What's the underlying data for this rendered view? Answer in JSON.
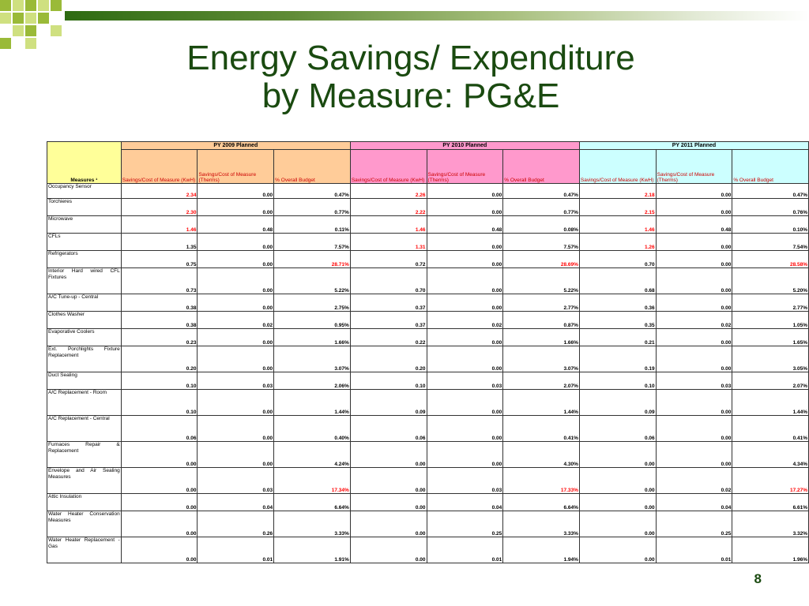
{
  "title": {
    "line1": "Energy Savings/ Expenditure",
    "line2": "by Measure: PG&E"
  },
  "page_number": "8",
  "table": {
    "measures_header": "Measures ¹",
    "groups": [
      "PY 2009 Planned",
      "PY 2010 Planned",
      "PY 2011 Planned"
    ],
    "sub_headers": [
      "Savings/Cost of Measure (KwH)",
      "Savings/Cost of Measure (Therms)",
      "% Overall Budget"
    ],
    "rows": [
      {
        "name": "Occupancy Sensor",
        "h": 19,
        "v": [
          [
            "2.34",
            "r"
          ],
          [
            "0.00",
            ""
          ],
          [
            "0.47%",
            ""
          ],
          [
            "2.26",
            "r"
          ],
          [
            "0.00",
            ""
          ],
          [
            "0.47%",
            ""
          ],
          [
            "2.18",
            "r"
          ],
          [
            "0.00",
            ""
          ],
          [
            "0.47%",
            ""
          ]
        ]
      },
      {
        "name": "Torchieres",
        "h": 22,
        "v": [
          [
            "2.30",
            "r"
          ],
          [
            "0.00",
            ""
          ],
          [
            "0.77%",
            ""
          ],
          [
            "2.22",
            "r"
          ],
          [
            "0.00",
            ""
          ],
          [
            "0.77%",
            ""
          ],
          [
            "2.15",
            "r"
          ],
          [
            "0.00",
            ""
          ],
          [
            "0.76%",
            ""
          ]
        ]
      },
      {
        "name": "Microwave",
        "h": 22,
        "v": [
          [
            "1.46",
            "r"
          ],
          [
            "0.48",
            ""
          ],
          [
            "0.11%",
            ""
          ],
          [
            "1.46",
            "r"
          ],
          [
            "0.48",
            ""
          ],
          [
            "0.08%",
            ""
          ],
          [
            "1.46",
            "r"
          ],
          [
            "0.48",
            ""
          ],
          [
            "0.10%",
            ""
          ]
        ]
      },
      {
        "name": "CFLs",
        "h": 22,
        "v": [
          [
            "1.35",
            ""
          ],
          [
            "0.00",
            ""
          ],
          [
            "7.57%",
            ""
          ],
          [
            "1.31",
            "r"
          ],
          [
            "0.00",
            ""
          ],
          [
            "7.57%",
            ""
          ],
          [
            "1.26",
            "r"
          ],
          [
            "0.00",
            ""
          ],
          [
            "7.54%",
            ""
          ]
        ]
      },
      {
        "name": "Refrigerators",
        "h": 22,
        "v": [
          [
            "0.75",
            ""
          ],
          [
            "0.00",
            ""
          ],
          [
            "28.71%",
            "r"
          ],
          [
            "0.72",
            ""
          ],
          [
            "0.00",
            ""
          ],
          [
            "28.69%",
            "r"
          ],
          [
            "0.70",
            ""
          ],
          [
            "0.00",
            ""
          ],
          [
            "28.58%",
            "r"
          ]
        ]
      },
      {
        "name": "Interior Hard wired CFL Fixtures",
        "h": 33,
        "v": [
          [
            "0.73",
            ""
          ],
          [
            "0.00",
            ""
          ],
          [
            "5.22%",
            ""
          ],
          [
            "0.70",
            ""
          ],
          [
            "0.00",
            ""
          ],
          [
            "5.22%",
            ""
          ],
          [
            "0.68",
            ""
          ],
          [
            "0.00",
            ""
          ],
          [
            "5.20%",
            ""
          ]
        ]
      },
      {
        "name": "A/C Tune-up - Central",
        "h": 22,
        "v": [
          [
            "0.38",
            ""
          ],
          [
            "0.00",
            ""
          ],
          [
            "2.75%",
            ""
          ],
          [
            "0.37",
            ""
          ],
          [
            "0.00",
            ""
          ],
          [
            "2.77%",
            ""
          ],
          [
            "0.36",
            ""
          ],
          [
            "0.00",
            ""
          ],
          [
            "2.77%",
            ""
          ]
        ]
      },
      {
        "name": "Clothes Washer",
        "h": 22,
        "v": [
          [
            "0.38",
            ""
          ],
          [
            "0.02",
            ""
          ],
          [
            "0.95%",
            ""
          ],
          [
            "0.37",
            ""
          ],
          [
            "0.02",
            ""
          ],
          [
            "0.87%",
            ""
          ],
          [
            "0.35",
            ""
          ],
          [
            "0.02",
            ""
          ],
          [
            "1.05%",
            ""
          ]
        ]
      },
      {
        "name": "Evaporative Coolers",
        "h": 22,
        "v": [
          [
            "0.23",
            ""
          ],
          [
            "0.00",
            ""
          ],
          [
            "1.66%",
            ""
          ],
          [
            "0.22",
            ""
          ],
          [
            "0.00",
            ""
          ],
          [
            "1.66%",
            ""
          ],
          [
            "0.21",
            ""
          ],
          [
            "0.00",
            ""
          ],
          [
            "1.65%",
            ""
          ]
        ]
      },
      {
        "name": "Ext. Porchlights Fixture Replacement",
        "h": 33,
        "v": [
          [
            "0.20",
            ""
          ],
          [
            "0.00",
            ""
          ],
          [
            "3.07%",
            ""
          ],
          [
            "0.20",
            ""
          ],
          [
            "0.00",
            ""
          ],
          [
            "3.07%",
            ""
          ],
          [
            "0.19",
            ""
          ],
          [
            "0.00",
            ""
          ],
          [
            "3.05%",
            ""
          ]
        ]
      },
      {
        "name": "Duct Sealing",
        "h": 22,
        "v": [
          [
            "0.10",
            ""
          ],
          [
            "0.03",
            ""
          ],
          [
            "2.06%",
            ""
          ],
          [
            "0.10",
            ""
          ],
          [
            "0.03",
            ""
          ],
          [
            "2.07%",
            ""
          ],
          [
            "0.10",
            ""
          ],
          [
            "0.03",
            ""
          ],
          [
            "2.07%",
            ""
          ]
        ]
      },
      {
        "name": "A/C Replacement - Room",
        "h": 33,
        "v": [
          [
            "0.10",
            ""
          ],
          [
            "0.00",
            ""
          ],
          [
            "1.44%",
            ""
          ],
          [
            "0.09",
            ""
          ],
          [
            "0.00",
            ""
          ],
          [
            "1.44%",
            ""
          ],
          [
            "0.09",
            ""
          ],
          [
            "0.00",
            ""
          ],
          [
            "1.44%",
            ""
          ]
        ]
      },
      {
        "name": "A/C Replacement - Central",
        "h": 33,
        "v": [
          [
            "0.06",
            ""
          ],
          [
            "0.00",
            ""
          ],
          [
            "0.40%",
            ""
          ],
          [
            "0.06",
            ""
          ],
          [
            "0.00",
            ""
          ],
          [
            "0.41%",
            ""
          ],
          [
            "0.06",
            ""
          ],
          [
            "0.00",
            ""
          ],
          [
            "0.41%",
            ""
          ]
        ]
      },
      {
        "name": "Furnaces Repair & Replacement",
        "h": 33,
        "v": [
          [
            "0.00",
            ""
          ],
          [
            "0.00",
            ""
          ],
          [
            "4.24%",
            ""
          ],
          [
            "0.00",
            ""
          ],
          [
            "0.00",
            ""
          ],
          [
            "4.30%",
            ""
          ],
          [
            "0.00",
            ""
          ],
          [
            "0.00",
            ""
          ],
          [
            "4.34%",
            ""
          ]
        ]
      },
      {
        "name": "Envelope and Air Sealing Measures",
        "h": 33,
        "v": [
          [
            "0.00",
            ""
          ],
          [
            "0.03",
            ""
          ],
          [
            "17.34%",
            "r"
          ],
          [
            "0.00",
            ""
          ],
          [
            "0.03",
            ""
          ],
          [
            "17.33%",
            "r"
          ],
          [
            "0.00",
            ""
          ],
          [
            "0.02",
            ""
          ],
          [
            "17.27%",
            "r"
          ]
        ]
      },
      {
        "name": "Attic Insulation",
        "h": 22,
        "v": [
          [
            "0.00",
            ""
          ],
          [
            "0.04",
            ""
          ],
          [
            "6.64%",
            ""
          ],
          [
            "0.00",
            ""
          ],
          [
            "0.04",
            ""
          ],
          [
            "6.64%",
            ""
          ],
          [
            "0.00",
            ""
          ],
          [
            "0.04",
            ""
          ],
          [
            "6.61%",
            ""
          ]
        ]
      },
      {
        "name": "Water Heater Conservation Measures",
        "h": 33,
        "v": [
          [
            "0.00",
            ""
          ],
          [
            "0.26",
            ""
          ],
          [
            "3.33%",
            ""
          ],
          [
            "0.00",
            ""
          ],
          [
            "0.25",
            ""
          ],
          [
            "3.33%",
            ""
          ],
          [
            "0.00",
            ""
          ],
          [
            "0.25",
            ""
          ],
          [
            "3.32%",
            ""
          ]
        ]
      },
      {
        "name": "Water Heater Replacement - Gas",
        "h": 33,
        "v": [
          [
            "0.00",
            ""
          ],
          [
            "0.01",
            ""
          ],
          [
            "1.91%",
            ""
          ],
          [
            "0.00",
            ""
          ],
          [
            "0.01",
            ""
          ],
          [
            "1.94%",
            ""
          ],
          [
            "0.00",
            ""
          ],
          [
            "0.01",
            ""
          ],
          [
            "1.96%",
            ""
          ]
        ]
      }
    ]
  }
}
